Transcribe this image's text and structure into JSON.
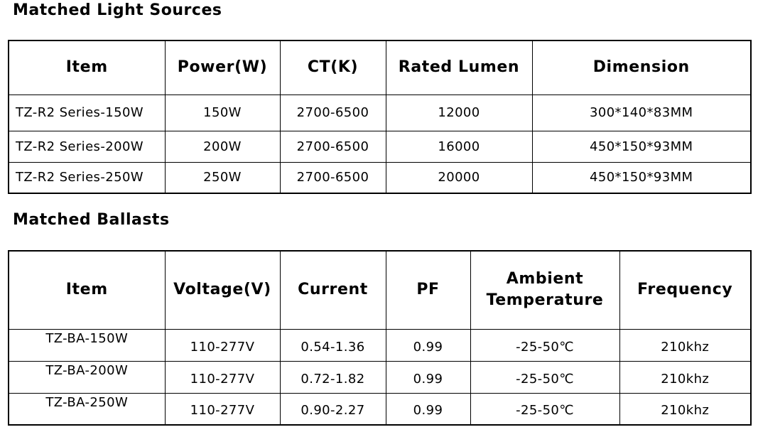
{
  "light_sources": {
    "title": "Matched Light Sources",
    "headers": [
      "Item",
      "Power(W)",
      "CT(K)",
      "Rated Lumen",
      "Dimension"
    ],
    "rows": [
      [
        "TZ-R2 Series-150W",
        "150W",
        "2700-6500",
        "12000",
        "300*140*83MM"
      ],
      [
        "TZ-R2 Series-200W",
        "200W",
        "2700-6500",
        "16000",
        "450*150*93MM"
      ],
      [
        "TZ-R2 Series-250W",
        "250W",
        "2700-6500",
        "20000",
        "450*150*93MM"
      ]
    ]
  },
  "ballasts": {
    "title": "Matched Ballasts",
    "headers": [
      "Item",
      "Voltage(V)",
      "Current",
      "PF",
      "Ambient Temperature",
      "Frequency"
    ],
    "header_ambient_line1": "Ambient",
    "header_ambient_line2": "Temperature",
    "rows": [
      [
        "TZ-BA-150W",
        "110-277V",
        "0.54-1.36",
        "0.99",
        "-25-50℃",
        "210khz"
      ],
      [
        "TZ-BA-200W",
        "110-277V",
        "0.72-1.82",
        "0.99",
        "-25-50℃",
        "210khz"
      ],
      [
        "TZ-BA-250W",
        "110-277V",
        "0.90-2.27",
        "0.99",
        "-25-50℃",
        "210khz"
      ]
    ]
  }
}
